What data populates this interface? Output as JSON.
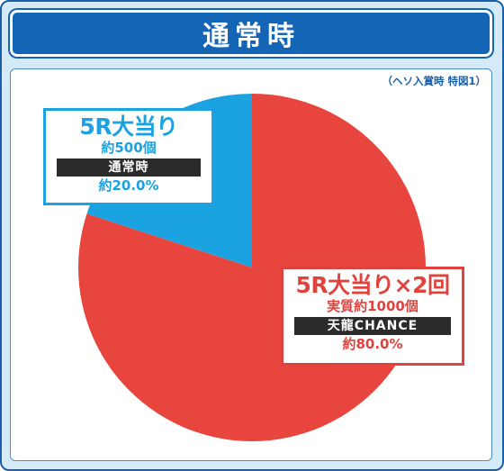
{
  "header": {
    "title": "通常時"
  },
  "note": "（ヘソ入賞時 特図1）",
  "colors": {
    "red": "#e8453e",
    "blue": "#1aa3e0",
    "header": "#1565b6"
  },
  "chart_data": {
    "type": "pie",
    "slices": [
      {
        "title": "5R大当り×2回",
        "detail": "実質約1000個",
        "tag": "天龍CHANCE",
        "label": "約80.0%",
        "value": 80.0,
        "color": "#e8453e"
      },
      {
        "title": "5R大当り",
        "detail": "約500個",
        "tag": "通常時",
        "label": "約20.0%",
        "value": 20.0,
        "color": "#1aa3e0"
      }
    ]
  }
}
